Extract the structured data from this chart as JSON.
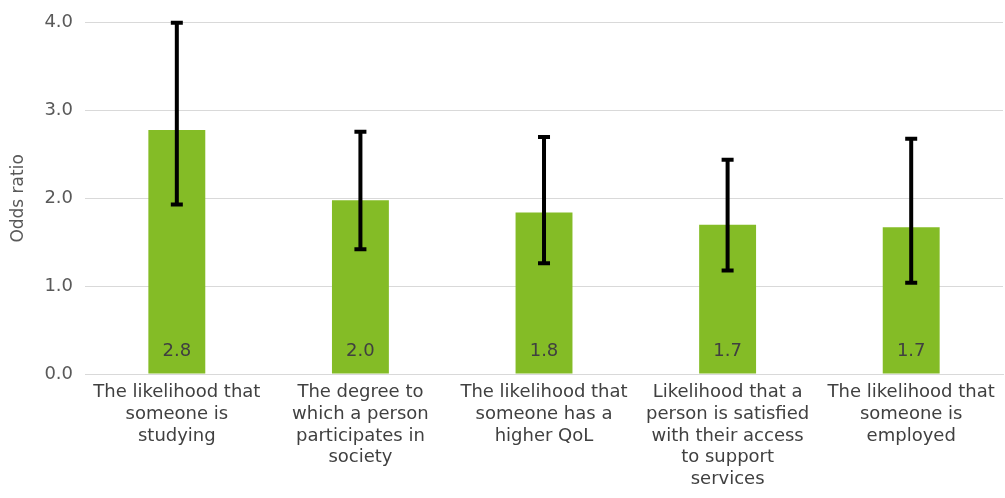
{
  "chart_data": {
    "type": "bar",
    "ylabel": "Odds ratio",
    "categories": [
      "The likelihood that someone is studying",
      "The degree to which a person participates in society",
      "The likelihood that someone has a higher QoL",
      "Likelihood that a person is satisfied with their access to support services",
      "The likelihood that someone is employed"
    ],
    "values": [
      2.78,
      1.98,
      1.84,
      1.7,
      1.67
    ],
    "value_labels": [
      "2.8",
      "2.0",
      "1.8",
      "1.7",
      "1.7"
    ],
    "errors": [
      [
        1.93,
        4.0
      ],
      [
        1.42,
        2.76
      ],
      [
        1.26,
        2.7
      ],
      [
        1.18,
        2.44
      ],
      [
        1.04,
        2.68
      ]
    ],
    "color": "#84bc26",
    "ylim": [
      0,
      4
    ],
    "yticks": [
      {
        "value": 0,
        "label": "0.0"
      },
      {
        "value": 1,
        "label": "1.0"
      },
      {
        "value": 2,
        "label": "2.0"
      },
      {
        "value": 3,
        "label": "3.0"
      },
      {
        "value": 4,
        "label": "4.0"
      }
    ],
    "grid": "y",
    "legend": false
  }
}
